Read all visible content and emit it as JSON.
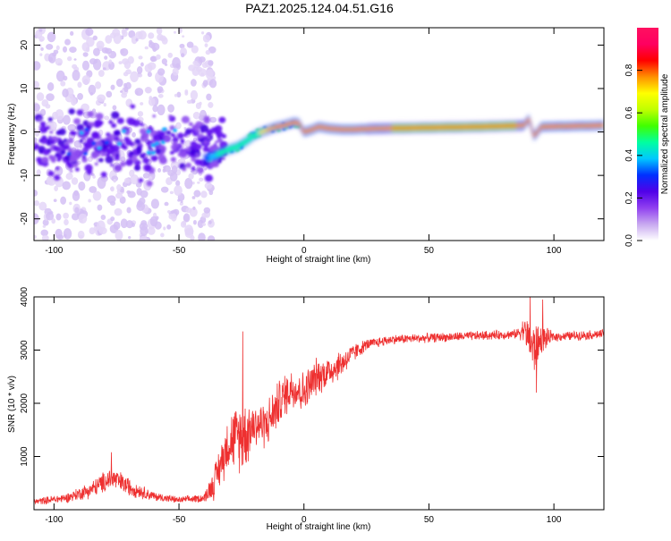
{
  "title": "PAZ1.2025.124.04.51.G16",
  "chart_data": [
    {
      "type": "heatmap",
      "xlabel": "Height of straight line (km)",
      "ylabel": "Frequency (Hz)",
      "xlim": [
        -108,
        120
      ],
      "ylim": [
        -25,
        24
      ],
      "x_ticks": [
        -100,
        -50,
        0,
        50,
        100
      ],
      "y_ticks": [
        -20,
        -10,
        0,
        10,
        20
      ],
      "colorbar": {
        "label": "Normalized spectral amplitude",
        "range": [
          0,
          1
        ],
        "ticks": [
          "0.0",
          "0.2",
          "0.4",
          "0.6",
          "0.8"
        ],
        "colors": [
          "#ffffff",
          "#c8a8f0",
          "#9040f0",
          "#5000e8",
          "#0030ff",
          "#00c8ff",
          "#00ffa0",
          "#40ff00",
          "#c0ff00",
          "#ffff00",
          "#ff9000",
          "#ff0000",
          "#ff0060",
          "#ff1060"
        ]
      },
      "ridge": [
        {
          "x": -38,
          "y": -6.0
        },
        {
          "x": -34,
          "y": -5.0
        },
        {
          "x": -30,
          "y": -4.0
        },
        {
          "x": -27,
          "y": -3.5
        },
        {
          "x": -24,
          "y": -2.5
        },
        {
          "x": -20,
          "y": -0.8
        },
        {
          "x": -16,
          "y": 0.2
        },
        {
          "x": -12,
          "y": 1.0
        },
        {
          "x": -8,
          "y": 1.5
        },
        {
          "x": -4,
          "y": 2.2
        },
        {
          "x": -2,
          "y": 2.0
        },
        {
          "x": 0,
          "y": 0.0
        },
        {
          "x": 3,
          "y": 0.5
        },
        {
          "x": 6,
          "y": 1.2
        },
        {
          "x": 10,
          "y": 0.8
        },
        {
          "x": 15,
          "y": 0.6
        },
        {
          "x": 20,
          "y": 0.6
        },
        {
          "x": 30,
          "y": 0.8
        },
        {
          "x": 50,
          "y": 1.0
        },
        {
          "x": 70,
          "y": 1.2
        },
        {
          "x": 88,
          "y": 1.5
        },
        {
          "x": 90,
          "y": 3.0
        },
        {
          "x": 92,
          "y": -1.0
        },
        {
          "x": 95,
          "y": 1.2
        },
        {
          "x": 120,
          "y": 1.5
        }
      ]
    },
    {
      "type": "line",
      "xlabel": "Height of straight line (km)",
      "ylabel": "SNR (10 * v/v)",
      "xlim": [
        -108,
        120
      ],
      "ylim": [
        0,
        4000
      ],
      "x_ticks": [
        -100,
        -50,
        0,
        50,
        100
      ],
      "y_ticks": [
        1000,
        2000,
        3000,
        4000
      ],
      "color": "#ee3030",
      "envelope": [
        {
          "x": -108,
          "y": 150,
          "amp": 70
        },
        {
          "x": -95,
          "y": 220,
          "amp": 100
        },
        {
          "x": -85,
          "y": 380,
          "amp": 180
        },
        {
          "x": -77,
          "y": 600,
          "amp": 250
        },
        {
          "x": -70,
          "y": 430,
          "amp": 200
        },
        {
          "x": -60,
          "y": 250,
          "amp": 100
        },
        {
          "x": -50,
          "y": 180,
          "amp": 70
        },
        {
          "x": -40,
          "y": 220,
          "amp": 90
        },
        {
          "x": -36,
          "y": 500,
          "amp": 350
        },
        {
          "x": -30,
          "y": 1300,
          "amp": 600
        },
        {
          "x": -24,
          "y": 1400,
          "amp": 800
        },
        {
          "x": -20,
          "y": 1600,
          "amp": 500
        },
        {
          "x": -15,
          "y": 1600,
          "amp": 500
        },
        {
          "x": -10,
          "y": 2000,
          "amp": 500
        },
        {
          "x": -5,
          "y": 2300,
          "amp": 450
        },
        {
          "x": 0,
          "y": 2200,
          "amp": 450
        },
        {
          "x": 5,
          "y": 2500,
          "amp": 400
        },
        {
          "x": 10,
          "y": 2600,
          "amp": 350
        },
        {
          "x": 15,
          "y": 2750,
          "amp": 300
        },
        {
          "x": 20,
          "y": 2950,
          "amp": 200
        },
        {
          "x": 25,
          "y": 3100,
          "amp": 120
        },
        {
          "x": 35,
          "y": 3200,
          "amp": 100
        },
        {
          "x": 60,
          "y": 3250,
          "amp": 100
        },
        {
          "x": 85,
          "y": 3300,
          "amp": 100
        },
        {
          "x": 88,
          "y": 3400,
          "amp": 250
        },
        {
          "x": 92,
          "y": 3000,
          "amp": 600
        },
        {
          "x": 95,
          "y": 3200,
          "amp": 300
        },
        {
          "x": 100,
          "y": 3250,
          "amp": 100
        },
        {
          "x": 120,
          "y": 3300,
          "amp": 100
        }
      ],
      "peaks": [
        {
          "x": -24.5,
          "y": 3350
        },
        {
          "x": -77,
          "y": 1080
        },
        {
          "x": 90.5,
          "y": 4000
        },
        {
          "x": 93,
          "y": 2200
        },
        {
          "x": 95.5,
          "y": 3950
        }
      ]
    }
  ]
}
